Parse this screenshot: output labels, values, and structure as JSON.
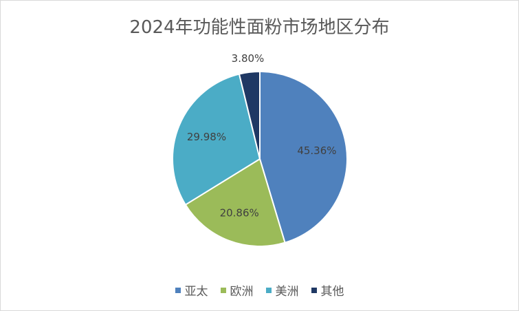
{
  "chart_data": {
    "type": "pie",
    "title": "2024年功能性面粉市场地区分布",
    "categories": [
      "亚太",
      "欧洲",
      "美洲",
      "其他"
    ],
    "values": [
      45.36,
      20.86,
      29.98,
      3.8
    ],
    "labels": [
      "45.36%",
      "20.86%",
      "29.98%",
      "3.80%"
    ],
    "colors": [
      "#4f81bd",
      "#9bbb59",
      "#4bacc6",
      "#1f3864"
    ],
    "legend_position": "bottom",
    "start_angle_deg": 0,
    "direction": "clockwise"
  }
}
